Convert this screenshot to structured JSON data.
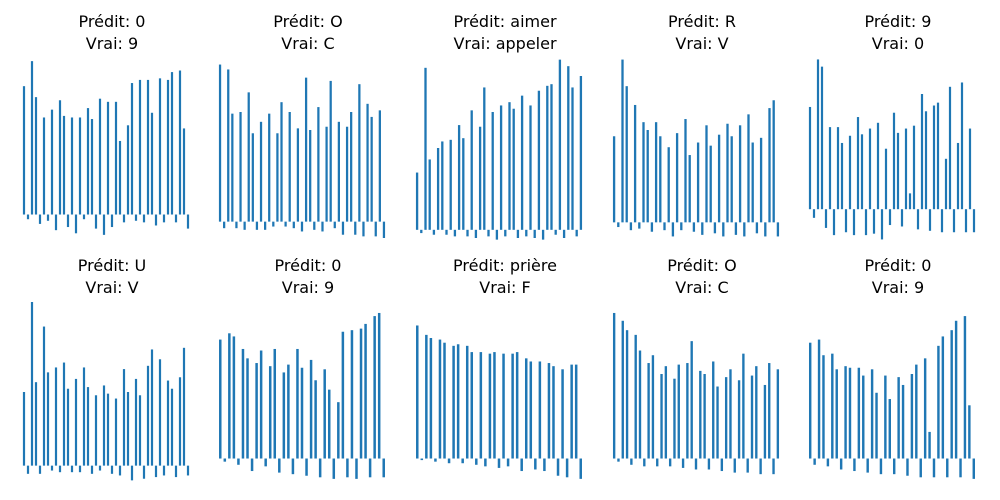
{
  "bar_color": "#1f77b4",
  "panels": [
    {
      "pred": "Prédit: 0",
      "true": "Vrai: 9"
    },
    {
      "pred": "Prédit: O",
      "true": "Vrai: C"
    },
    {
      "pred": "Prédit: aimer",
      "true": "Vrai: appeler"
    },
    {
      "pred": "Prédit: R",
      "true": "Vrai: V"
    },
    {
      "pred": "Prédit: 9",
      "true": "Vrai: 0"
    },
    {
      "pred": "Prédit: U",
      "true": "Vrai: V"
    },
    {
      "pred": "Prédit: 0",
      "true": "Vrai: 9"
    },
    {
      "pred": "Prédit: prière",
      "true": "Vrai: F"
    },
    {
      "pred": "Prédit: O",
      "true": "Vrai: C"
    },
    {
      "pred": "Prédit: 0",
      "true": "Vrai: 9"
    }
  ],
  "chart_data": [
    {
      "type": "bar",
      "title": "Prédit: 0\nVrai: 9",
      "axes_visible": false,
      "values": [
        0.82,
        -0.03,
        0.98,
        0.75,
        -0.06,
        0.62,
        -0.04,
        0.67,
        -0.1,
        0.73,
        0.63,
        -0.08,
        0.62,
        -0.12,
        0.62,
        -0.03,
        0.68,
        0.61,
        -0.09,
        0.74,
        -0.13,
        0.72,
        -0.08,
        0.72,
        0.47,
        -0.05,
        0.57,
        0.84,
        -0.04,
        0.86,
        -0.05,
        0.86,
        0.65,
        -0.07,
        0.87,
        -0.05,
        0.86,
        0.91,
        -0.05,
        0.92,
        0.55,
        -0.09
      ],
      "ylim": [
        -0.15,
        1.0
      ]
    },
    {
      "type": "bar",
      "title": "Prédit: O\nVrai: C",
      "axes_visible": false,
      "values": [
        0.96,
        -0.04,
        0.93,
        0.66,
        -0.04,
        0.67,
        -0.05,
        0.79,
        0.54,
        -0.05,
        0.61,
        -0.05,
        0.66,
        -0.03,
        0.54,
        0.73,
        -0.03,
        0.67,
        -0.04,
        0.57,
        -0.06,
        0.88,
        0.56,
        -0.05,
        0.7,
        -0.06,
        0.58,
        0.86,
        -0.04,
        0.61,
        -0.08,
        0.58,
        0.67,
        -0.08,
        0.84,
        -0.09,
        0.72,
        0.64,
        -0.09,
        0.68,
        -0.1
      ],
      "ylim": [
        -0.1,
        1.0
      ]
    },
    {
      "type": "bar",
      "title": "Prédit: aimer\nVrai: appeler",
      "axes_visible": false,
      "values": [
        0.35,
        -0.02,
        0.99,
        0.43,
        -0.03,
        0.5,
        0.54,
        -0.03,
        0.55,
        -0.04,
        0.64,
        0.56,
        -0.04,
        0.73,
        -0.05,
        0.63,
        0.87,
        -0.04,
        0.72,
        -0.06,
        0.76,
        -0.04,
        0.78,
        0.74,
        -0.05,
        0.82,
        -0.04,
        0.76,
        -0.05,
        0.85,
        -0.06,
        0.88,
        0.89,
        -0.03,
        1.04,
        -0.05,
        1.0,
        0.87,
        -0.04,
        0.94
      ],
      "ylim": [
        -0.05,
        1.05
      ]
    },
    {
      "type": "bar",
      "title": "Prédit: R\nVrai: V",
      "axes_visible": false,
      "values": [
        0.55,
        -0.03,
        1.04,
        0.87,
        -0.05,
        0.75,
        -0.04,
        0.64,
        0.59,
        -0.06,
        0.64,
        0.55,
        -0.05,
        0.48,
        -0.09,
        0.57,
        -0.05,
        0.66,
        0.43,
        -0.06,
        0.51,
        -0.08,
        0.62,
        0.49,
        -0.07,
        0.56,
        -0.09,
        0.63,
        0.55,
        -0.08,
        0.62,
        -0.09,
        0.69,
        0.51,
        -0.07,
        0.54,
        -0.09,
        0.73,
        0.78,
        -0.09
      ],
      "ylim": [
        -0.1,
        1.05
      ]
    },
    {
      "type": "bar",
      "title": "Prédit: 9\nVrai: 0",
      "axes_visible": false,
      "values": [
        0.71,
        -0.06,
        1.04,
        0.99,
        -0.13,
        0.57,
        -0.18,
        0.57,
        0.46,
        -0.16,
        0.51,
        -0.18,
        0.64,
        0.52,
        -0.18,
        0.56,
        -0.17,
        0.6,
        -0.21,
        0.42,
        -0.11,
        0.67,
        0.53,
        -0.12,
        0.56,
        0.11,
        0.58,
        -0.14,
        0.8,
        0.68,
        -0.15,
        0.72,
        0.74,
        -0.16,
        0.35,
        0.85,
        -0.16,
        0.46,
        0.88,
        -0.16,
        0.56,
        -0.16
      ],
      "ylim": [
        -0.2,
        1.05
      ]
    },
    {
      "type": "bar",
      "title": "Prédit: U\nVrai: V",
      "axes_visible": false,
      "values": [
        0.45,
        -0.05,
        1.0,
        0.51,
        -0.05,
        0.85,
        0.57,
        -0.03,
        0.6,
        -0.04,
        0.63,
        0.47,
        -0.04,
        0.53,
        -0.04,
        0.6,
        0.48,
        -0.05,
        0.43,
        -0.03,
        0.49,
        0.44,
        -0.05,
        0.41,
        -0.06,
        0.59,
        0.45,
        -0.09,
        0.53,
        0.43,
        -0.08,
        0.61,
        0.71,
        -0.07,
        0.65,
        -0.06,
        0.52,
        0.47,
        -0.07,
        0.54,
        0.72,
        -0.06
      ],
      "ylim": [
        -0.1,
        1.0
      ]
    },
    {
      "type": "bar",
      "title": "Prédit: 0\nVrai: 9",
      "axes_visible": false,
      "values": [
        0.76,
        -0.02,
        0.8,
        0.78,
        -0.04,
        0.7,
        0.64,
        -0.08,
        0.61,
        0.69,
        -0.05,
        0.59,
        0.7,
        -0.09,
        0.55,
        0.6,
        -0.1,
        0.7,
        0.58,
        -0.11,
        0.63,
        0.5,
        -0.12,
        0.57,
        0.44,
        -0.13,
        0.36,
        0.81,
        -0.12,
        0.82,
        -0.13,
        0.83,
        0.86,
        -0.12,
        0.91,
        0.93,
        -0.12
      ],
      "ylim": [
        -0.15,
        1.0
      ]
    },
    {
      "type": "bar",
      "title": "Prédit: prière\nVrai: F",
      "axes_visible": false,
      "values": [
        0.85,
        -0.01,
        0.79,
        0.77,
        -0.02,
        0.76,
        0.74,
        -0.03,
        0.72,
        0.73,
        -0.03,
        0.72,
        0.68,
        -0.04,
        0.68,
        -0.05,
        0.67,
        0.68,
        -0.06,
        0.67,
        -0.05,
        0.67,
        0.68,
        -0.08,
        0.64,
        0.62,
        -0.07,
        0.62,
        -0.08,
        0.61,
        0.59,
        -0.11,
        0.57,
        -0.12,
        0.6,
        0.6,
        -0.13
      ],
      "ylim": [
        -0.15,
        1.0
      ]
    },
    {
      "type": "bar",
      "title": "Prédit: O\nVrai: C",
      "axes_visible": false,
      "values": [
        0.93,
        -0.02,
        0.88,
        0.82,
        -0.04,
        0.79,
        0.69,
        -0.05,
        0.61,
        0.66,
        -0.05,
        0.54,
        0.59,
        -0.05,
        0.51,
        0.6,
        -0.06,
        0.61,
        0.75,
        -0.07,
        0.56,
        0.54,
        -0.07,
        0.62,
        0.46,
        -0.08,
        0.52,
        0.57,
        -0.09,
        0.5,
        0.67,
        -0.09,
        0.53,
        0.59,
        -0.1,
        0.47,
        0.61,
        -0.1,
        0.57
      ],
      "ylim": [
        -0.15,
        1.0
      ]
    },
    {
      "type": "bar",
      "title": "Prédit: 0\nVrai: 9",
      "axes_visible": false,
      "values": [
        0.74,
        -0.04,
        0.76,
        0.66,
        -0.05,
        0.67,
        0.57,
        -0.07,
        0.59,
        0.58,
        -0.08,
        0.58,
        0.53,
        -0.09,
        0.57,
        0.42,
        -0.1,
        0.53,
        0.38,
        -0.1,
        0.52,
        0.47,
        -0.11,
        0.54,
        0.6,
        -0.12,
        0.64,
        0.17,
        -0.12,
        0.72,
        0.78,
        -0.12,
        0.82,
        0.88,
        -0.12,
        0.91,
        0.34,
        -0.13
      ],
      "ylim": [
        -0.15,
        1.0
      ]
    }
  ]
}
